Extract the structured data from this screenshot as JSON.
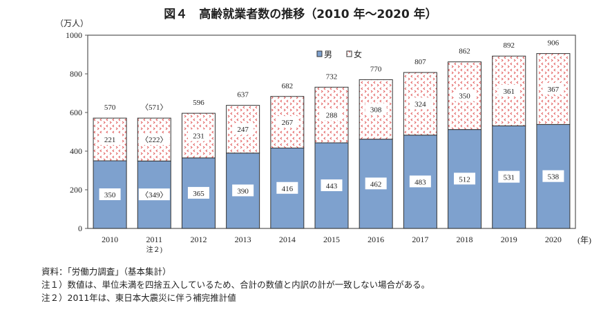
{
  "chart_data": {
    "type": "bar",
    "stacked": true,
    "title": "図４　高齢就業者数の推移（2010 年～2020 年）",
    "ylabel": "（万人）",
    "xlabel": "(年)",
    "ylim": [
      0,
      1000
    ],
    "yticks": [
      0,
      200,
      400,
      600,
      800,
      1000
    ],
    "categories": [
      "2010",
      "2011",
      "2012",
      "2013",
      "2014",
      "2015",
      "2016",
      "2017",
      "2018",
      "2019",
      "2020"
    ],
    "category_notes": {
      "2011": "注２)"
    },
    "series": [
      {
        "name": "男",
        "color": "#7EA1CE",
        "values": [
          350,
          349,
          365,
          390,
          416,
          443,
          462,
          483,
          512,
          531,
          538
        ],
        "labels": [
          "350",
          "〈349〉",
          "365",
          "390",
          "416",
          "443",
          "462",
          "483",
          "512",
          "531",
          "538"
        ]
      },
      {
        "name": "女",
        "color": "#E05050",
        "pattern": "dotted",
        "values": [
          221,
          222,
          231,
          247,
          267,
          288,
          308,
          324,
          350,
          361,
          367
        ],
        "labels": [
          "221",
          "〈222〉",
          "231",
          "247",
          "267",
          "288",
          "308",
          "324",
          "350",
          "361",
          "367"
        ]
      }
    ],
    "totals": [
      "570",
      "〈571〉",
      "596",
      "637",
      "682",
      "732",
      "770",
      "807",
      "862",
      "892",
      "906"
    ],
    "legend": "top-center",
    "grid": false
  },
  "notes": [
    "資料：「労働力調査」（基本集計）",
    "注１）数値は、単位未満を四捨五入しているため、合計の数値と内訳の計が一致しない場合がある。",
    "注２）2011年は、東日本大震災に伴う補完推計値"
  ]
}
